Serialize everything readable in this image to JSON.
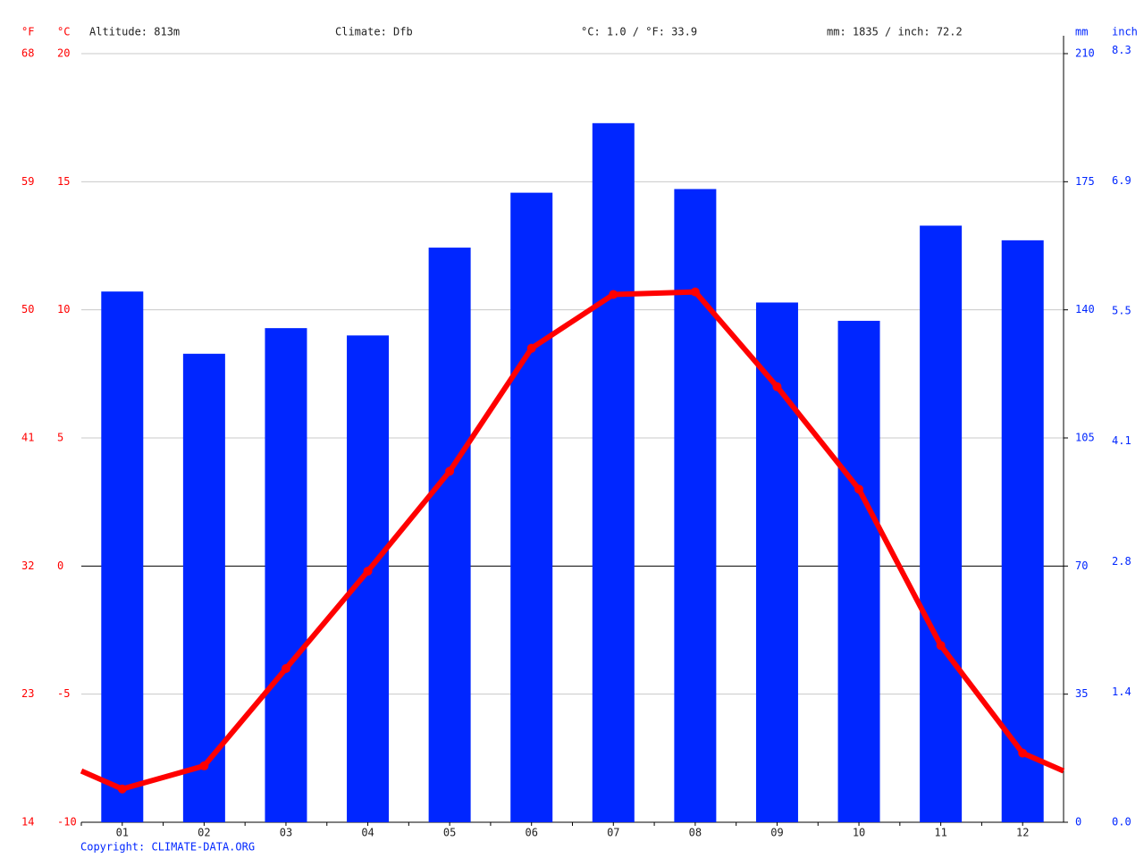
{
  "chart_data": {
    "type": "combo",
    "header": {
      "temp_f_unit": "°F",
      "temp_c_unit": "°C",
      "altitude": "Altitude: 813m",
      "climate": "Climate: Dfb",
      "avg_temp": "°C: 1.0 / °F: 33.9",
      "precip_total": "mm: 1835 / inch: 72.2",
      "precip_mm_unit": "mm",
      "precip_inch_unit": "inch"
    },
    "footer": "Copyright: CLIMATE-DATA.ORG",
    "categories": [
      "01",
      "02",
      "03",
      "04",
      "05",
      "06",
      "07",
      "08",
      "09",
      "10",
      "11",
      "12"
    ],
    "series": [
      {
        "type": "bar",
        "color": "#0026ff",
        "axis": "y2",
        "values": [
          145,
          128,
          135,
          133,
          157,
          172,
          191,
          173,
          142,
          137,
          163,
          159
        ]
      },
      {
        "type": "line",
        "color": "#ff0000",
        "axis": "y",
        "values": [
          -8.7,
          -7.8,
          -4.0,
          -0.2,
          3.7,
          8.5,
          10.6,
          10.7,
          7.0,
          3.0,
          -3.1,
          -7.3
        ]
      }
    ],
    "ylim": [
      -10,
      20
    ],
    "yticks": [
      20,
      15,
      10,
      5,
      0,
      -5,
      -10
    ],
    "yticks_f": [
      68,
      59,
      50,
      41,
      32,
      23,
      14
    ],
    "y2lim": [
      0,
      210
    ],
    "y2ticks": [
      210,
      175,
      140,
      105,
      70,
      35,
      0
    ],
    "y2ticks_inch": [
      8.3,
      6.9,
      5.5,
      4.1,
      2.8,
      1.4,
      {
        "value": 0,
        "label": "0.0"
      }
    ],
    "grid": true
  }
}
